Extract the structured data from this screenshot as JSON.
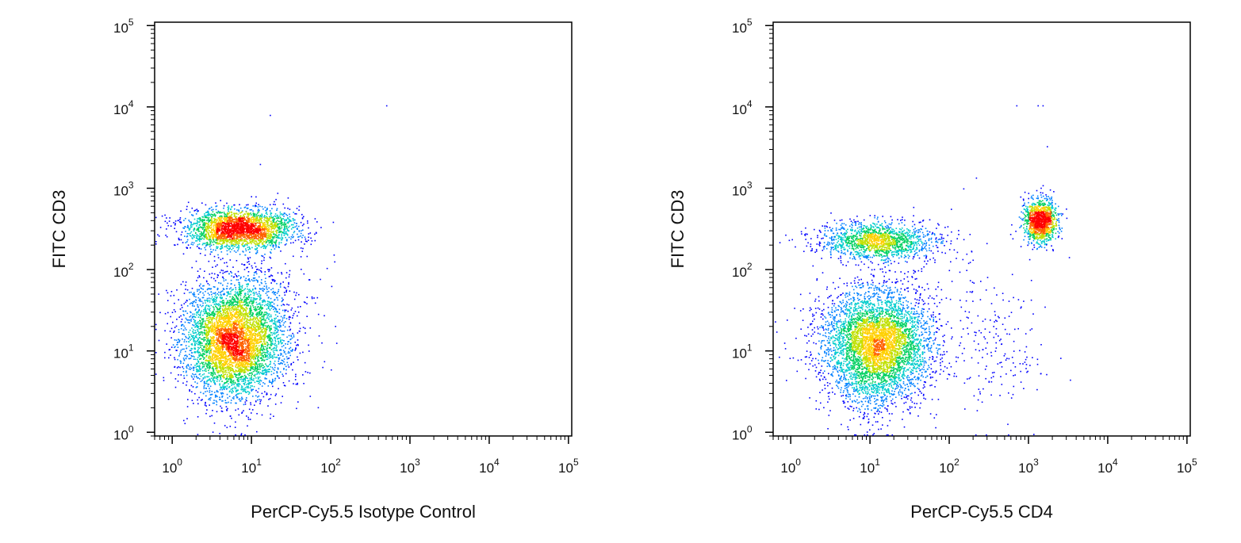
{
  "chart_data": [
    {
      "type": "scatter",
      "xlabel": "PerCP-Cy5.5 Isotype Control",
      "ylabel": "FITC CD3",
      "xscale": "log",
      "yscale": "log",
      "xlim": [
        0.6,
        110000
      ],
      "ylim": [
        0.9,
        110000
      ],
      "ticks": [
        {
          "value": 1,
          "base": "10",
          "exp": "0"
        },
        {
          "value": 10,
          "base": "10",
          "exp": "1"
        },
        {
          "value": 100,
          "base": "10",
          "exp": "2"
        },
        {
          "value": 1000,
          "base": "10",
          "exp": "3"
        },
        {
          "value": 10000,
          "base": "10",
          "exp": "4"
        },
        {
          "value": 100000,
          "base": "10",
          "exp": "5"
        }
      ],
      "grid": false,
      "legend": "none",
      "colormap": [
        "#0000ff",
        "#0080ff",
        "#00cccc",
        "#00d060",
        "#c0e000",
        "#ffd000",
        "#ff6000",
        "#ff0000"
      ],
      "populations": [
        {
          "n": 5000,
          "x": 6.0,
          "y": 14.0,
          "sx": 0.32,
          "sy": 0.36
        },
        {
          "n": 2600,
          "x": 7.0,
          "y": 320.0,
          "sx": 0.34,
          "sy": 0.12
        },
        {
          "n": 120,
          "x": 30.0,
          "y": 40.0,
          "sx": 0.3,
          "sy": 0.6
        }
      ],
      "points": [
        [
          17,
          8000
        ],
        [
          500,
          10500
        ]
      ]
    },
    {
      "type": "scatter",
      "xlabel": "PerCP-Cy5.5 CD4",
      "ylabel": "FITC CD3",
      "xscale": "log",
      "yscale": "log",
      "xlim": [
        0.6,
        110000
      ],
      "ylim": [
        0.9,
        110000
      ],
      "ticks": [
        {
          "value": 1,
          "base": "10",
          "exp": "0"
        },
        {
          "value": 10,
          "base": "10",
          "exp": "1"
        },
        {
          "value": 100,
          "base": "10",
          "exp": "2"
        },
        {
          "value": 1000,
          "base": "10",
          "exp": "3"
        },
        {
          "value": 10000,
          "base": "10",
          "exp": "4"
        },
        {
          "value": 100000,
          "base": "10",
          "exp": "5"
        }
      ],
      "grid": false,
      "legend": "none",
      "colormap": [
        "#0000ff",
        "#0080ff",
        "#00cccc",
        "#00d060",
        "#c0e000",
        "#ffd000",
        "#ff6000",
        "#ff0000"
      ],
      "populations": [
        {
          "n": 4800,
          "x": 12.0,
          "y": 12.0,
          "sx": 0.34,
          "sy": 0.36
        },
        {
          "n": 1500,
          "x": 12.0,
          "y": 230.0,
          "sx": 0.36,
          "sy": 0.12
        },
        {
          "n": 1200,
          "x": 1400.0,
          "y": 400.0,
          "sx": 0.1,
          "sy": 0.13
        },
        {
          "n": 150,
          "x": 400.0,
          "y": 10.0,
          "sx": 0.3,
          "sy": 0.45
        },
        {
          "n": 80,
          "x": 200.0,
          "y": 60.0,
          "sx": 0.5,
          "sy": 0.6
        }
      ],
      "points": [
        [
          700,
          10500
        ],
        [
          1300,
          10500
        ],
        [
          1500,
          10500
        ],
        [
          1700,
          3300
        ],
        [
          150,
          1000
        ]
      ]
    }
  ]
}
